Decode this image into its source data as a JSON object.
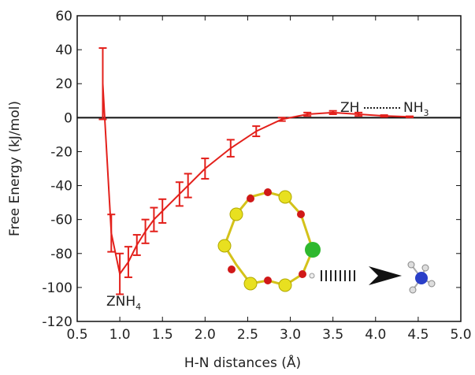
{
  "chart_data": {
    "type": "line",
    "xlabel": "H-N distances (Å)",
    "ylabel": "Free Energy (kJ/mol)",
    "x": [
      0.8,
      0.9,
      1.0,
      1.1,
      1.2,
      1.3,
      1.4,
      1.5,
      1.7,
      1.8,
      2.0,
      2.3,
      2.6,
      2.9,
      3.2,
      3.5,
      3.8,
      4.1,
      4.4
    ],
    "series": [
      {
        "color": "#e3201b",
        "values": [
          20,
          -68,
          -92,
          -85,
          -75,
          -67,
          -60,
          -55,
          -45,
          -40,
          -30,
          -18,
          -8,
          -1,
          2,
          3,
          2,
          1,
          0.5
        ],
        "errors": [
          21,
          11,
          12,
          9,
          6,
          7,
          7,
          7,
          7,
          7,
          6,
          5,
          3,
          1,
          1,
          1,
          1,
          0.5,
          0.3
        ]
      }
    ],
    "xlim": [
      0.5,
      5.0
    ],
    "xticks": [
      0.5,
      {
        "value": 1,
        "label": "1.0"
      },
      1.5,
      {
        "value": 2,
        "label": "2.0"
      },
      2.5,
      {
        "value": 3,
        "label": "3.0"
      },
      3.5,
      {
        "value": 4,
        "label": "4.0"
      },
      4.5,
      {
        "value": 5,
        "label": "5.0"
      }
    ],
    "ylim": [
      -120,
      60
    ],
    "yticks": [
      -120,
      -100,
      -80,
      -60,
      -40,
      -20,
      0,
      20,
      40,
      60
    ],
    "reference_line": 0,
    "annotation_left": {
      "text": "ZNH",
      "subscript": "4"
    },
    "annotation_right": {
      "from": "ZH",
      "to": "NH",
      "subscript": "3"
    }
  }
}
